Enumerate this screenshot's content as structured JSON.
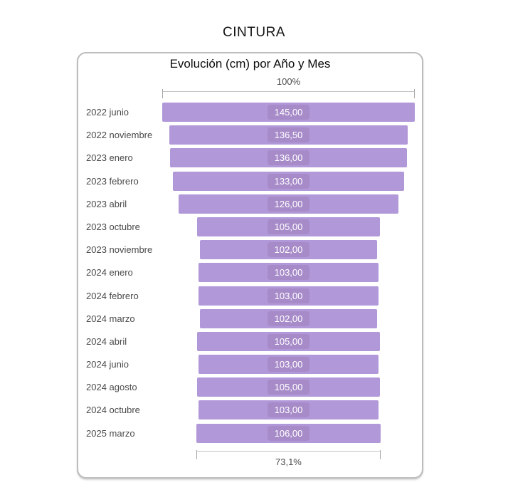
{
  "page": {
    "title": "CINTURA"
  },
  "card": {
    "subtitle": "Evolución (cm) por Año y Mes"
  },
  "axis": {
    "top_label": "100%",
    "bottom_label": "73,1%"
  },
  "colors": {
    "bar": "#b198d8",
    "badge": "#a78bc9",
    "label_text": "#4b4b4b",
    "badge_text": "#ffffff",
    "card_border": "#bcbcbc"
  },
  "chart_data": {
    "type": "bar",
    "subtype": "funnel-horizontal-centered",
    "title": "CINTURA",
    "subtitle": "Evolución (cm) por Año y Mes",
    "categories": [
      "2022 junio",
      "2022 noviembre",
      "2023 enero",
      "2023 febrero",
      "2023 abril",
      "2023 octubre",
      "2023 noviembre",
      "2024 enero",
      "2024 febrero",
      "2024 marzo",
      "2024 abril",
      "2024 junio",
      "2024 agosto",
      "2024 octubre",
      "2025 marzo"
    ],
    "values": [
      145.0,
      136.5,
      136.0,
      133.0,
      126.0,
      105.0,
      102.0,
      103.0,
      103.0,
      102.0,
      105.0,
      103.0,
      105.0,
      103.0,
      106.0
    ],
    "value_labels": [
      "145,00",
      "136,50",
      "136,00",
      "133,00",
      "126,00",
      "105,00",
      "102,00",
      "103,00",
      "103,00",
      "102,00",
      "105,00",
      "103,00",
      "105,00",
      "103,00",
      "106,00"
    ],
    "max_value": 145.0,
    "top_percent": "100%",
    "bottom_percent": "73,1%",
    "ylabel": "",
    "xlabel": "",
    "grid": false,
    "legend": false
  }
}
